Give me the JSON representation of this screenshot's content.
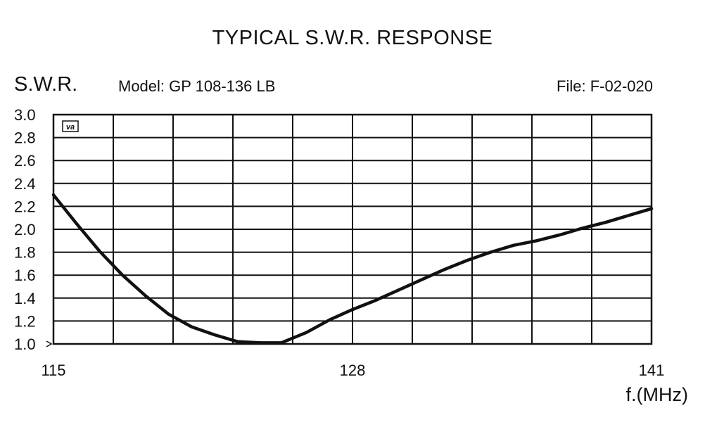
{
  "chart_data": {
    "type": "line",
    "title": "TYPICAL S.W.R. RESPONSE",
    "ylabel": "S.W.R.",
    "xlabel": "f.(MHz)",
    "model_text": "Model:  GP 108-136 LB",
    "file_text": "File:  F-02-020",
    "logo_text": "[va]",
    "xlim": [
      115,
      141
    ],
    "ylim": [
      1.0,
      3.0
    ],
    "x_ticks": [
      "115",
      "128",
      "141"
    ],
    "y_ticks": [
      "1.0",
      "1.2",
      "1.4",
      "1.6",
      "1.8",
      "2.0",
      "2.2",
      "2.4",
      "2.6",
      "2.8",
      "3.0"
    ],
    "grid": true,
    "series": [
      {
        "x": [
          115,
          116,
          117,
          118,
          119,
          120,
          121,
          122,
          123,
          124,
          124.9,
          126,
          127,
          128,
          129,
          130,
          131,
          132,
          133,
          134,
          135,
          136,
          137,
          138,
          139,
          140,
          141
        ],
        "y": [
          2.3,
          2.05,
          1.81,
          1.6,
          1.42,
          1.26,
          1.15,
          1.08,
          1.02,
          1.01,
          1.01,
          1.1,
          1.21,
          1.3,
          1.38,
          1.47,
          1.56,
          1.65,
          1.73,
          1.8,
          1.86,
          1.9,
          1.95,
          2.01,
          2.06,
          2.12,
          2.18
        ]
      }
    ]
  }
}
